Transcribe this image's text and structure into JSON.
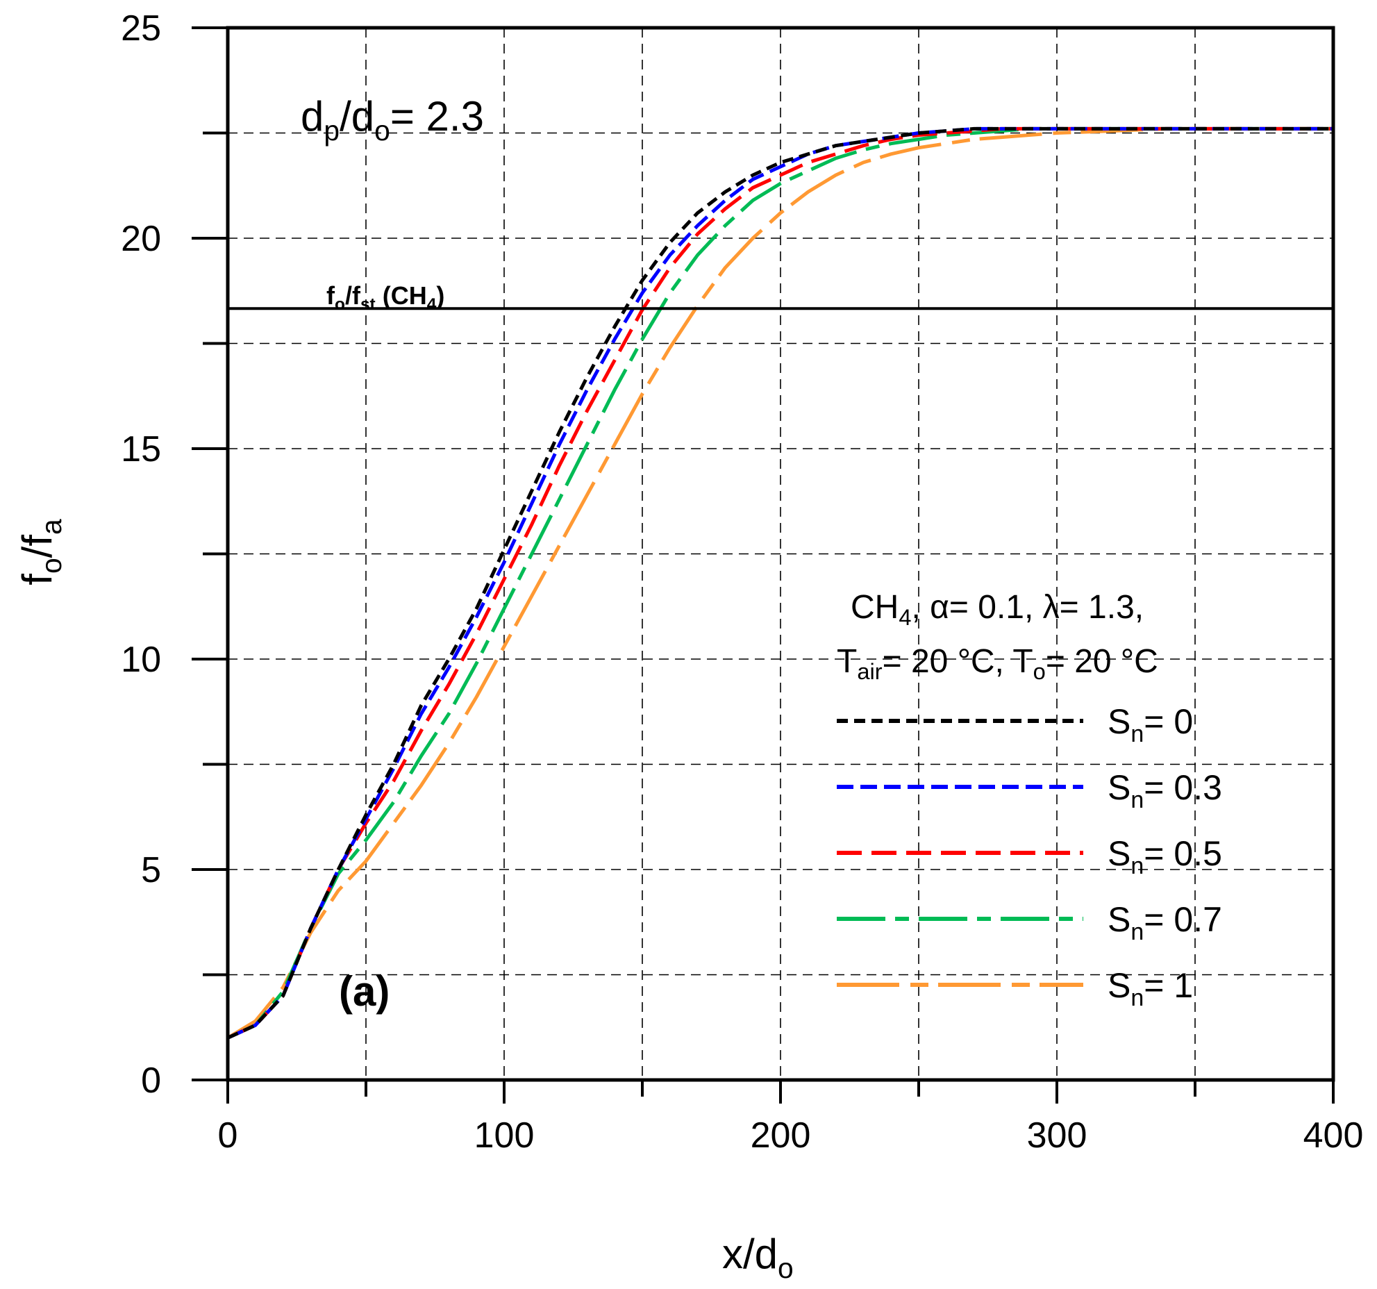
{
  "chart_data": {
    "type": "line",
    "title": "",
    "xlabel": {
      "main": "x/d",
      "sub": "o"
    },
    "ylabel": {
      "f1": "f",
      "s1": "o",
      "mid": "/f",
      "s2": "a"
    },
    "xlim": [
      0,
      400
    ],
    "ylim": [
      0,
      25
    ],
    "x_ticks": [
      0,
      100,
      200,
      300,
      400
    ],
    "x_tick_labels": [
      "0",
      "100",
      "200",
      "300",
      "400"
    ],
    "y_ticks": [
      0,
      5,
      10,
      15,
      20,
      25
    ],
    "y_tick_labels": [
      "0",
      "5",
      "10",
      "15",
      "20",
      "25"
    ],
    "x_minor_ticks": [
      50,
      150,
      250,
      350
    ],
    "y_minor_ticks": [
      2.5,
      7.5,
      12.5,
      17.5,
      22.5
    ],
    "grid": true,
    "legend_position": "center-right",
    "annotations": {
      "param": {
        "a": "d",
        "as": "p",
        "b": "/d",
        "bs": "o",
        "c": "= 2.3"
      },
      "reference_line": {
        "y": 18.33,
        "a": "f",
        "as": "o",
        "b": "/f",
        "bs": "st",
        "c": " (CH",
        "cs": "4",
        "d": ")"
      },
      "conditions_line1": {
        "a": "CH",
        "as": "4",
        "b": ", α= 0.1, λ= 1.3,"
      },
      "conditions_line2": {
        "a": "T",
        "as": "air",
        "b": "= 20 °C, T",
        "bs": "o",
        "c": "= 20 °C"
      },
      "panel_label": "(a)"
    },
    "x": [
      0,
      10,
      20,
      30,
      40,
      50,
      60,
      70,
      80,
      90,
      100,
      110,
      120,
      130,
      140,
      150,
      160,
      170,
      180,
      190,
      200,
      210,
      220,
      230,
      240,
      250,
      260,
      270,
      280,
      290,
      300,
      320,
      340,
      360,
      380,
      400
    ],
    "series": [
      {
        "name": "0",
        "label_prefix": "S",
        "label_sub": "n",
        "label_suffix": "= 0",
        "color": "#000000",
        "dash": "16 9",
        "values": [
          1.0,
          1.3,
          2.0,
          3.6,
          5.0,
          6.3,
          7.5,
          8.9,
          10.0,
          11.2,
          12.6,
          14.0,
          15.4,
          16.7,
          17.9,
          19.0,
          19.9,
          20.6,
          21.1,
          21.5,
          21.8,
          22.0,
          22.2,
          22.3,
          22.4,
          22.5,
          22.55,
          22.6,
          22.6,
          22.6,
          22.6,
          22.6,
          22.6,
          22.6,
          22.6,
          22.6
        ]
      },
      {
        "name": "0.3",
        "label_prefix": "S",
        "label_sub": "n",
        "label_suffix": "= 0.3",
        "color": "#0000ff",
        "dash": "24 10",
        "values": [
          1.0,
          1.3,
          2.0,
          3.6,
          5.0,
          6.2,
          7.4,
          8.7,
          9.8,
          11.0,
          12.3,
          13.7,
          15.1,
          16.4,
          17.6,
          18.7,
          19.6,
          20.3,
          20.9,
          21.4,
          21.7,
          22.0,
          22.2,
          22.3,
          22.4,
          22.5,
          22.55,
          22.6,
          22.6,
          22.6,
          22.6,
          22.6,
          22.6,
          22.6,
          22.6,
          22.6
        ]
      },
      {
        "name": "0.5",
        "label_prefix": "S",
        "label_sub": "n",
        "label_suffix": "= 0.5",
        "color": "#ff0000",
        "dash": "36 14",
        "values": [
          1.0,
          1.3,
          2.0,
          3.6,
          5.0,
          6.1,
          7.1,
          8.3,
          9.4,
          10.6,
          11.9,
          13.2,
          14.6,
          15.9,
          17.1,
          18.3,
          19.3,
          20.1,
          20.7,
          21.2,
          21.5,
          21.8,
          22.0,
          22.2,
          22.35,
          22.45,
          22.5,
          22.55,
          22.6,
          22.6,
          22.6,
          22.6,
          22.6,
          22.6,
          22.6,
          22.6
        ]
      },
      {
        "name": "0.7",
        "label_prefix": "S",
        "label_sub": "n",
        "label_suffix": "= 0.7",
        "color": "#00bb55",
        "dash": "70 14 20 14",
        "values": [
          1.0,
          1.3,
          2.1,
          3.6,
          4.9,
          5.7,
          6.6,
          7.7,
          8.7,
          9.9,
          11.2,
          12.5,
          13.8,
          15.1,
          16.4,
          17.6,
          18.7,
          19.6,
          20.3,
          20.9,
          21.3,
          21.6,
          21.9,
          22.1,
          22.25,
          22.35,
          22.45,
          22.5,
          22.55,
          22.6,
          22.6,
          22.6,
          22.6,
          22.6,
          22.6,
          22.6
        ]
      },
      {
        "name": "1",
        "label_prefix": "S",
        "label_sub": "n",
        "label_suffix": "= 1",
        "color": "#ff9933",
        "dash": "90 16 26 14",
        "values": [
          1.0,
          1.4,
          2.2,
          3.5,
          4.5,
          5.2,
          6.1,
          7.0,
          8.0,
          9.1,
          10.3,
          11.5,
          12.7,
          13.9,
          15.1,
          16.3,
          17.4,
          18.4,
          19.3,
          20.0,
          20.6,
          21.1,
          21.5,
          21.8,
          22.0,
          22.15,
          22.25,
          22.35,
          22.4,
          22.45,
          22.5,
          22.55,
          22.6,
          22.6,
          22.6,
          22.6
        ]
      }
    ]
  }
}
